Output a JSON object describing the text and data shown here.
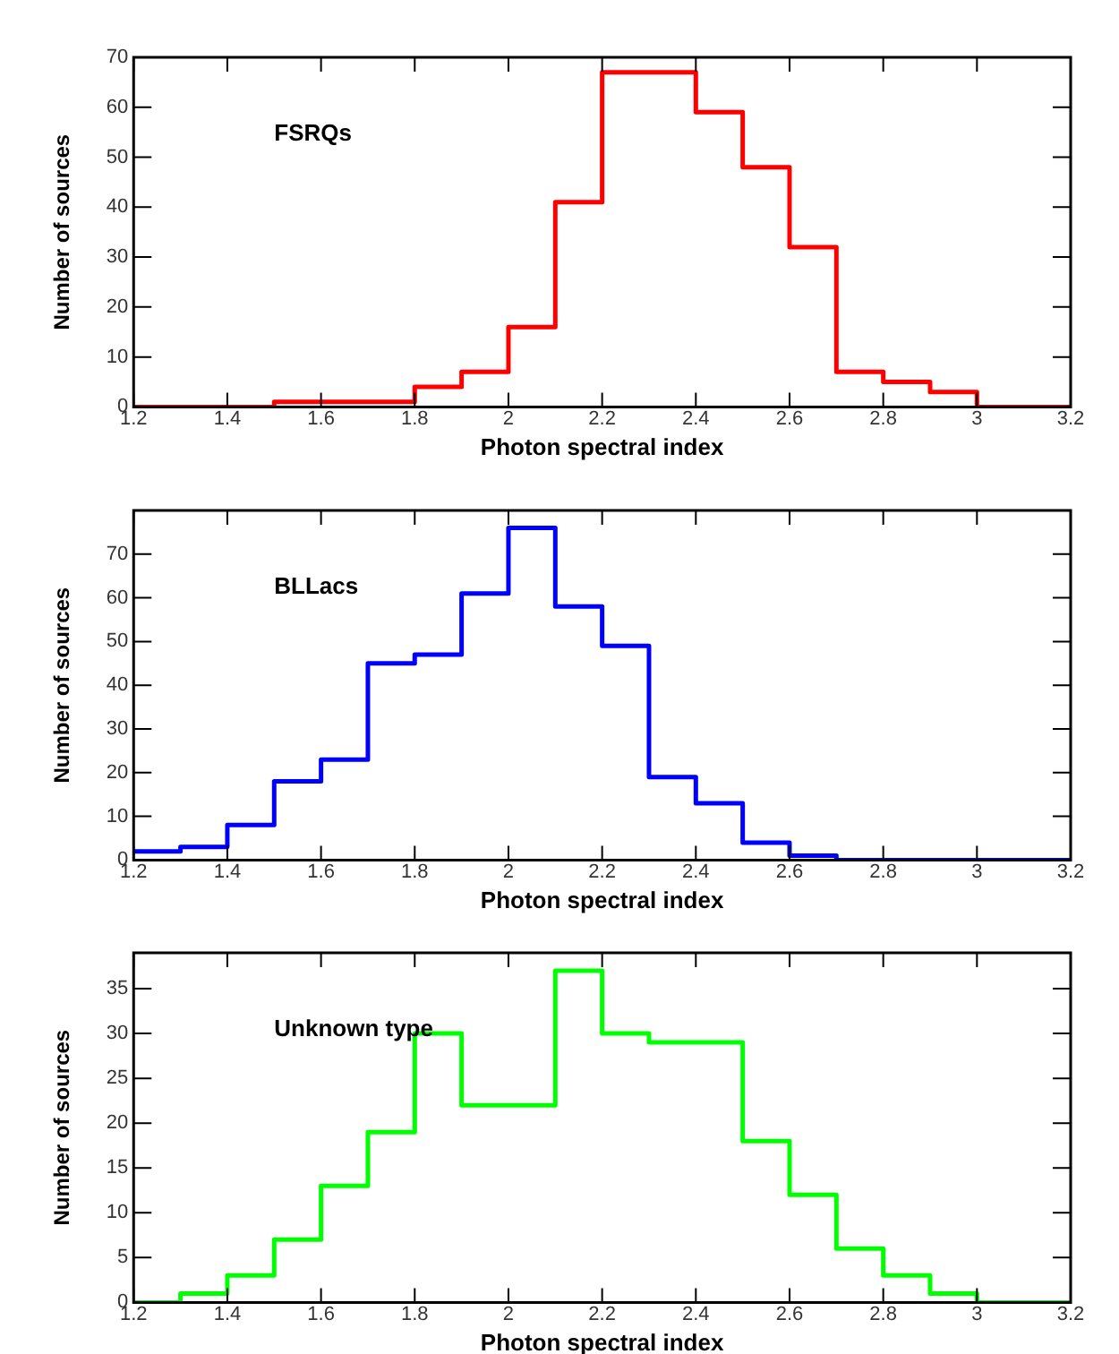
{
  "chart_data": [
    {
      "type": "histogram",
      "xlabel": "Photon spectral index",
      "ylabel": "Number of sources",
      "bins": [
        1.2,
        1.3,
        1.4,
        1.5,
        1.6,
        1.7,
        1.8,
        1.9,
        2.0,
        2.1,
        2.2,
        2.3,
        2.4,
        2.5,
        2.6,
        2.7,
        2.8,
        2.9,
        3.0,
        3.1,
        3.2
      ],
      "series": [
        {
          "name": "FSRQs",
          "color": "#ff0000",
          "values": [
            0,
            0,
            0,
            1,
            1,
            1,
            4,
            7,
            16,
            41,
            67,
            67,
            59,
            48,
            32,
            7,
            5,
            3,
            0,
            0
          ]
        }
      ],
      "xlim": [
        1.2,
        3.2
      ],
      "xticks": [
        1.2,
        1.4,
        1.6,
        1.8,
        2,
        2.2,
        2.4,
        2.6,
        2.8,
        3,
        3.2
      ],
      "ylim": [
        0,
        70
      ],
      "yticks": [
        0,
        10,
        20,
        30,
        40,
        50,
        60,
        70
      ],
      "grid": false,
      "legend": false
    },
    {
      "type": "histogram",
      "xlabel": "Photon spectral index",
      "ylabel": "Number of sources",
      "bins": [
        1.2,
        1.3,
        1.4,
        1.5,
        1.6,
        1.7,
        1.8,
        1.9,
        2.0,
        2.1,
        2.2,
        2.3,
        2.4,
        2.5,
        2.6,
        2.7,
        2.8,
        2.9,
        3.0,
        3.1,
        3.2
      ],
      "series": [
        {
          "name": "BLLacs",
          "color": "#0000ff",
          "values": [
            2,
            3,
            8,
            18,
            23,
            45,
            47,
            61,
            76,
            58,
            49,
            19,
            13,
            4,
            1,
            0,
            0,
            0,
            0,
            0
          ]
        }
      ],
      "xlim": [
        1.2,
        3.2
      ],
      "xticks": [
        1.2,
        1.4,
        1.6,
        1.8,
        2,
        2.2,
        2.4,
        2.6,
        2.8,
        3,
        3.2
      ],
      "ylim": [
        0,
        80
      ],
      "yticks": [
        0,
        10,
        20,
        30,
        40,
        50,
        60,
        70
      ],
      "grid": false,
      "legend": false
    },
    {
      "type": "histogram",
      "xlabel": "Photon spectral index",
      "ylabel": "Number of sources",
      "bins": [
        1.2,
        1.3,
        1.4,
        1.5,
        1.6,
        1.7,
        1.8,
        1.9,
        2.0,
        2.1,
        2.2,
        2.3,
        2.4,
        2.5,
        2.6,
        2.7,
        2.8,
        2.9,
        3.0,
        3.1,
        3.2
      ],
      "series": [
        {
          "name": "Unknown type",
          "color": "#00ff00",
          "values": [
            0,
            1,
            3,
            7,
            13,
            19,
            30,
            22,
            22,
            37,
            30,
            29,
            29,
            18,
            12,
            6,
            3,
            1,
            0,
            0
          ]
        }
      ],
      "xlim": [
        1.2,
        3.2
      ],
      "xticks": [
        1.2,
        1.4,
        1.6,
        1.8,
        2,
        2.2,
        2.4,
        2.6,
        2.8,
        3,
        3.2
      ],
      "ylim": [
        0,
        39
      ],
      "yticks": [
        0,
        5,
        10,
        15,
        20,
        25,
        30,
        35
      ],
      "grid": false,
      "legend": false
    }
  ]
}
